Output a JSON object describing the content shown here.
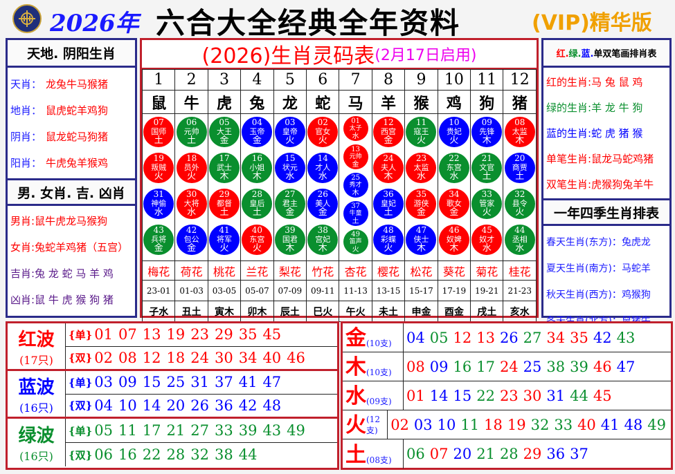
{
  "header": {
    "year": "2026年",
    "title": "六合大全经典全年资料",
    "vip": "(VIP)精华版"
  },
  "colors": {
    "red": "#ff0000",
    "green": "#0a8f2e",
    "blue": "#0000ff"
  },
  "left": {
    "title1": "天地. 阴阳生肖",
    "items1": [
      {
        "label": "天肖：",
        "value": "龙兔牛马猴猪"
      },
      {
        "label": "地肖：",
        "value": "鼠虎蛇羊鸡狗"
      },
      {
        "label": "阴肖：",
        "value": "鼠龙蛇马狗猪"
      },
      {
        "label": "阳肖：",
        "value": "牛虎兔羊猴鸡"
      }
    ],
    "title2": "男. 女肖. 吉. 凶肖",
    "items2": [
      {
        "label": "男肖:",
        "value": "鼠牛虎龙马猴狗"
      },
      {
        "label": "女肖:",
        "value": "兔蛇羊鸡猪（五宫）"
      },
      {
        "label": "吉肖:",
        "value": "兔 龙 蛇 马 羊 鸡"
      },
      {
        "label": "凶肖:",
        "value": "鼠 牛 虎 猴 狗 猪"
      }
    ]
  },
  "center": {
    "title": "(2026)生肖灵码表",
    "subtitle": "(2月17日启用)",
    "columns": [
      {
        "n": "1",
        "z": "鼠",
        "f": "梅花",
        "t": "23-01",
        "b": "子水",
        "balls": [
          [
            "07",
            "国师",
            "土"
          ],
          [
            "19",
            "叛贼",
            "火"
          ],
          [
            "31",
            "神偷",
            "水"
          ],
          [
            "43",
            "兵将",
            "金"
          ]
        ]
      },
      {
        "n": "2",
        "z": "牛",
        "f": "荷花",
        "t": "01-03",
        "b": "丑土",
        "balls": [
          [
            "06",
            "元帅",
            "土"
          ],
          [
            "18",
            "员外",
            "火"
          ],
          [
            "30",
            "大将",
            "水"
          ],
          [
            "42",
            "包公",
            "金"
          ]
        ]
      },
      {
        "n": "3",
        "z": "虎",
        "f": "桃花",
        "t": "03-05",
        "b": "寅木",
        "balls": [
          [
            "05",
            "大王",
            "金"
          ],
          [
            "17",
            "武士",
            "木"
          ],
          [
            "29",
            "都督",
            "土"
          ],
          [
            "41",
            "将军",
            "火"
          ]
        ]
      },
      {
        "n": "4",
        "z": "兔",
        "f": "兰花",
        "t": "05-07",
        "b": "卯木",
        "balls": [
          [
            "04",
            "玉帝",
            "金"
          ],
          [
            "16",
            "小姐",
            "木"
          ],
          [
            "28",
            "皇后",
            "土"
          ],
          [
            "40",
            "东宫",
            "火"
          ]
        ]
      },
      {
        "n": "5",
        "z": "龙",
        "f": "梨花",
        "t": "07-09",
        "b": "辰土",
        "balls": [
          [
            "03",
            "皇帝",
            "火"
          ],
          [
            "15",
            "状元",
            "水"
          ],
          [
            "27",
            "君主",
            "金"
          ],
          [
            "39",
            "国君",
            "木"
          ]
        ]
      },
      {
        "n": "6",
        "z": "蛇",
        "f": "竹花",
        "t": "09-11",
        "b": "巳火",
        "balls": [
          [
            "02",
            "官女",
            "火"
          ],
          [
            "14",
            "才人",
            "水"
          ],
          [
            "26",
            "美人",
            "金"
          ],
          [
            "38",
            "宫妃",
            "木"
          ]
        ]
      },
      {
        "n": "7",
        "z": "马",
        "f": "杏花",
        "t": "11-13",
        "b": "午火",
        "balls": [
          [
            "01",
            "太子",
            "水"
          ],
          [
            "13",
            "元帅",
            "金"
          ],
          [
            "25",
            "秀才",
            "木"
          ],
          [
            "37",
            "牛童",
            "土"
          ],
          [
            "49",
            "笛声",
            "火"
          ]
        ]
      },
      {
        "n": "8",
        "z": "羊",
        "f": "樱花",
        "t": "13-15",
        "b": "未土",
        "balls": [
          [
            "12",
            "西宫",
            "金"
          ],
          [
            "24",
            "夫人",
            "木"
          ],
          [
            "36",
            "皇妃",
            "土"
          ],
          [
            "48",
            "彩蝶",
            "火"
          ]
        ]
      },
      {
        "n": "9",
        "z": "猴",
        "f": "松花",
        "t": "15-17",
        "b": "申金",
        "balls": [
          [
            "11",
            "寇王",
            "火"
          ],
          [
            "23",
            "太监",
            "水"
          ],
          [
            "35",
            "游侠",
            "金"
          ],
          [
            "47",
            "侠士",
            "木"
          ]
        ]
      },
      {
        "n": "10",
        "z": "鸡",
        "f": "葵花",
        "t": "17-19",
        "b": "酉金",
        "balls": [
          [
            "10",
            "贵妃",
            "火"
          ],
          [
            "22",
            "东宫",
            "水"
          ],
          [
            "34",
            "歌女",
            "金"
          ],
          [
            "46",
            "奴婢",
            "木"
          ]
        ]
      },
      {
        "n": "11",
        "z": "狗",
        "f": "菊花",
        "t": "19-21",
        "b": "戌土",
        "balls": [
          [
            "09",
            "先锋",
            "木"
          ],
          [
            "21",
            "文官",
            "土"
          ],
          [
            "33",
            "管家",
            "火"
          ],
          [
            "45",
            "奴才",
            "水"
          ]
        ]
      },
      {
        "n": "12",
        "z": "猪",
        "f": "桂花",
        "t": "21-23",
        "b": "亥水",
        "balls": [
          [
            "08",
            "太监",
            "木"
          ],
          [
            "20",
            "商贾",
            "土"
          ],
          [
            "32",
            "县令",
            "火"
          ],
          [
            "44",
            "丞相",
            "水"
          ]
        ]
      }
    ]
  },
  "right": {
    "title1": "红. 绿. 蓝. 单双笔画排肖表",
    "title1_parts": [
      "红.",
      "绿.",
      "蓝.",
      "单双笔画排肖表"
    ],
    "items1": [
      {
        "label": "红的生肖:",
        "value": "马 兔 鼠 鸡",
        "color": "red"
      },
      {
        "label": "绿的生肖:",
        "value": "羊 龙 牛 狗",
        "color": "green"
      },
      {
        "label": "蓝的生肖:",
        "value": "蛇 虎 猪 猴",
        "color": "blue"
      },
      {
        "label": "单笔生肖:",
        "value": "鼠龙马蛇鸡猪",
        "color": "red"
      },
      {
        "label": "双笔生肖:",
        "value": "虎猴狗兔羊牛",
        "color": "red"
      }
    ],
    "title2": "一年四季生肖排表",
    "items2": [
      {
        "label": "春天生肖(东方)：",
        "value": "兔虎龙"
      },
      {
        "label": "夏天生肖(南方)：",
        "value": "马蛇羊"
      },
      {
        "label": "秋天生肖(西方)：",
        "value": "鸡猴狗"
      },
      {
        "label": "冬天生肖(北方)：",
        "value": "鼠猪牛"
      }
    ]
  },
  "waves": [
    {
      "name": "红波",
      "count": "(17只)",
      "color": "red",
      "single_tag": "{单}",
      "double_tag": "{双}",
      "single": [
        "01",
        "07",
        "13",
        "19",
        "23",
        "29",
        "35",
        "45"
      ],
      "double": [
        "02",
        "08",
        "12",
        "18",
        "24",
        "30",
        "34",
        "40",
        "46"
      ]
    },
    {
      "name": "蓝波",
      "count": "(16只)",
      "color": "blue",
      "single_tag": "{单}",
      "double_tag": "{双}",
      "single": [
        "03",
        "09",
        "15",
        "25",
        "31",
        "37",
        "41",
        "47"
      ],
      "double": [
        "04",
        "10",
        "14",
        "20",
        "26",
        "36",
        "42",
        "48"
      ]
    },
    {
      "name": "绿波",
      "count": "(16只)",
      "color": "green",
      "single_tag": "{单}",
      "double_tag": "{双}",
      "single": [
        "05",
        "11",
        "17",
        "21",
        "27",
        "33",
        "39",
        "43",
        "49"
      ],
      "double": [
        "06",
        "16",
        "22",
        "28",
        "32",
        "38",
        "44"
      ]
    }
  ],
  "elements": [
    {
      "name": "金",
      "count": "(10支)",
      "nums": [
        "04",
        "05",
        "12",
        "13",
        "26",
        "27",
        "34",
        "35",
        "42",
        "43"
      ]
    },
    {
      "name": "木",
      "count": "(10支)",
      "nums": [
        "08",
        "09",
        "16",
        "17",
        "24",
        "25",
        "38",
        "39",
        "46",
        "47"
      ]
    },
    {
      "name": "水",
      "count": "(09支)",
      "nums": [
        "01",
        "14",
        "15",
        "22",
        "23",
        "30",
        "31",
        "44",
        "45"
      ]
    },
    {
      "name": "火",
      "count": "(12支)",
      "nums": [
        "02",
        "03",
        "10",
        "11",
        "18",
        "19",
        "32",
        "33",
        "40",
        "41",
        "48",
        "49"
      ]
    },
    {
      "name": "土",
      "count": "(08支)",
      "nums": [
        "06",
        "07",
        "20",
        "21",
        "28",
        "29",
        "36",
        "37"
      ]
    }
  ]
}
